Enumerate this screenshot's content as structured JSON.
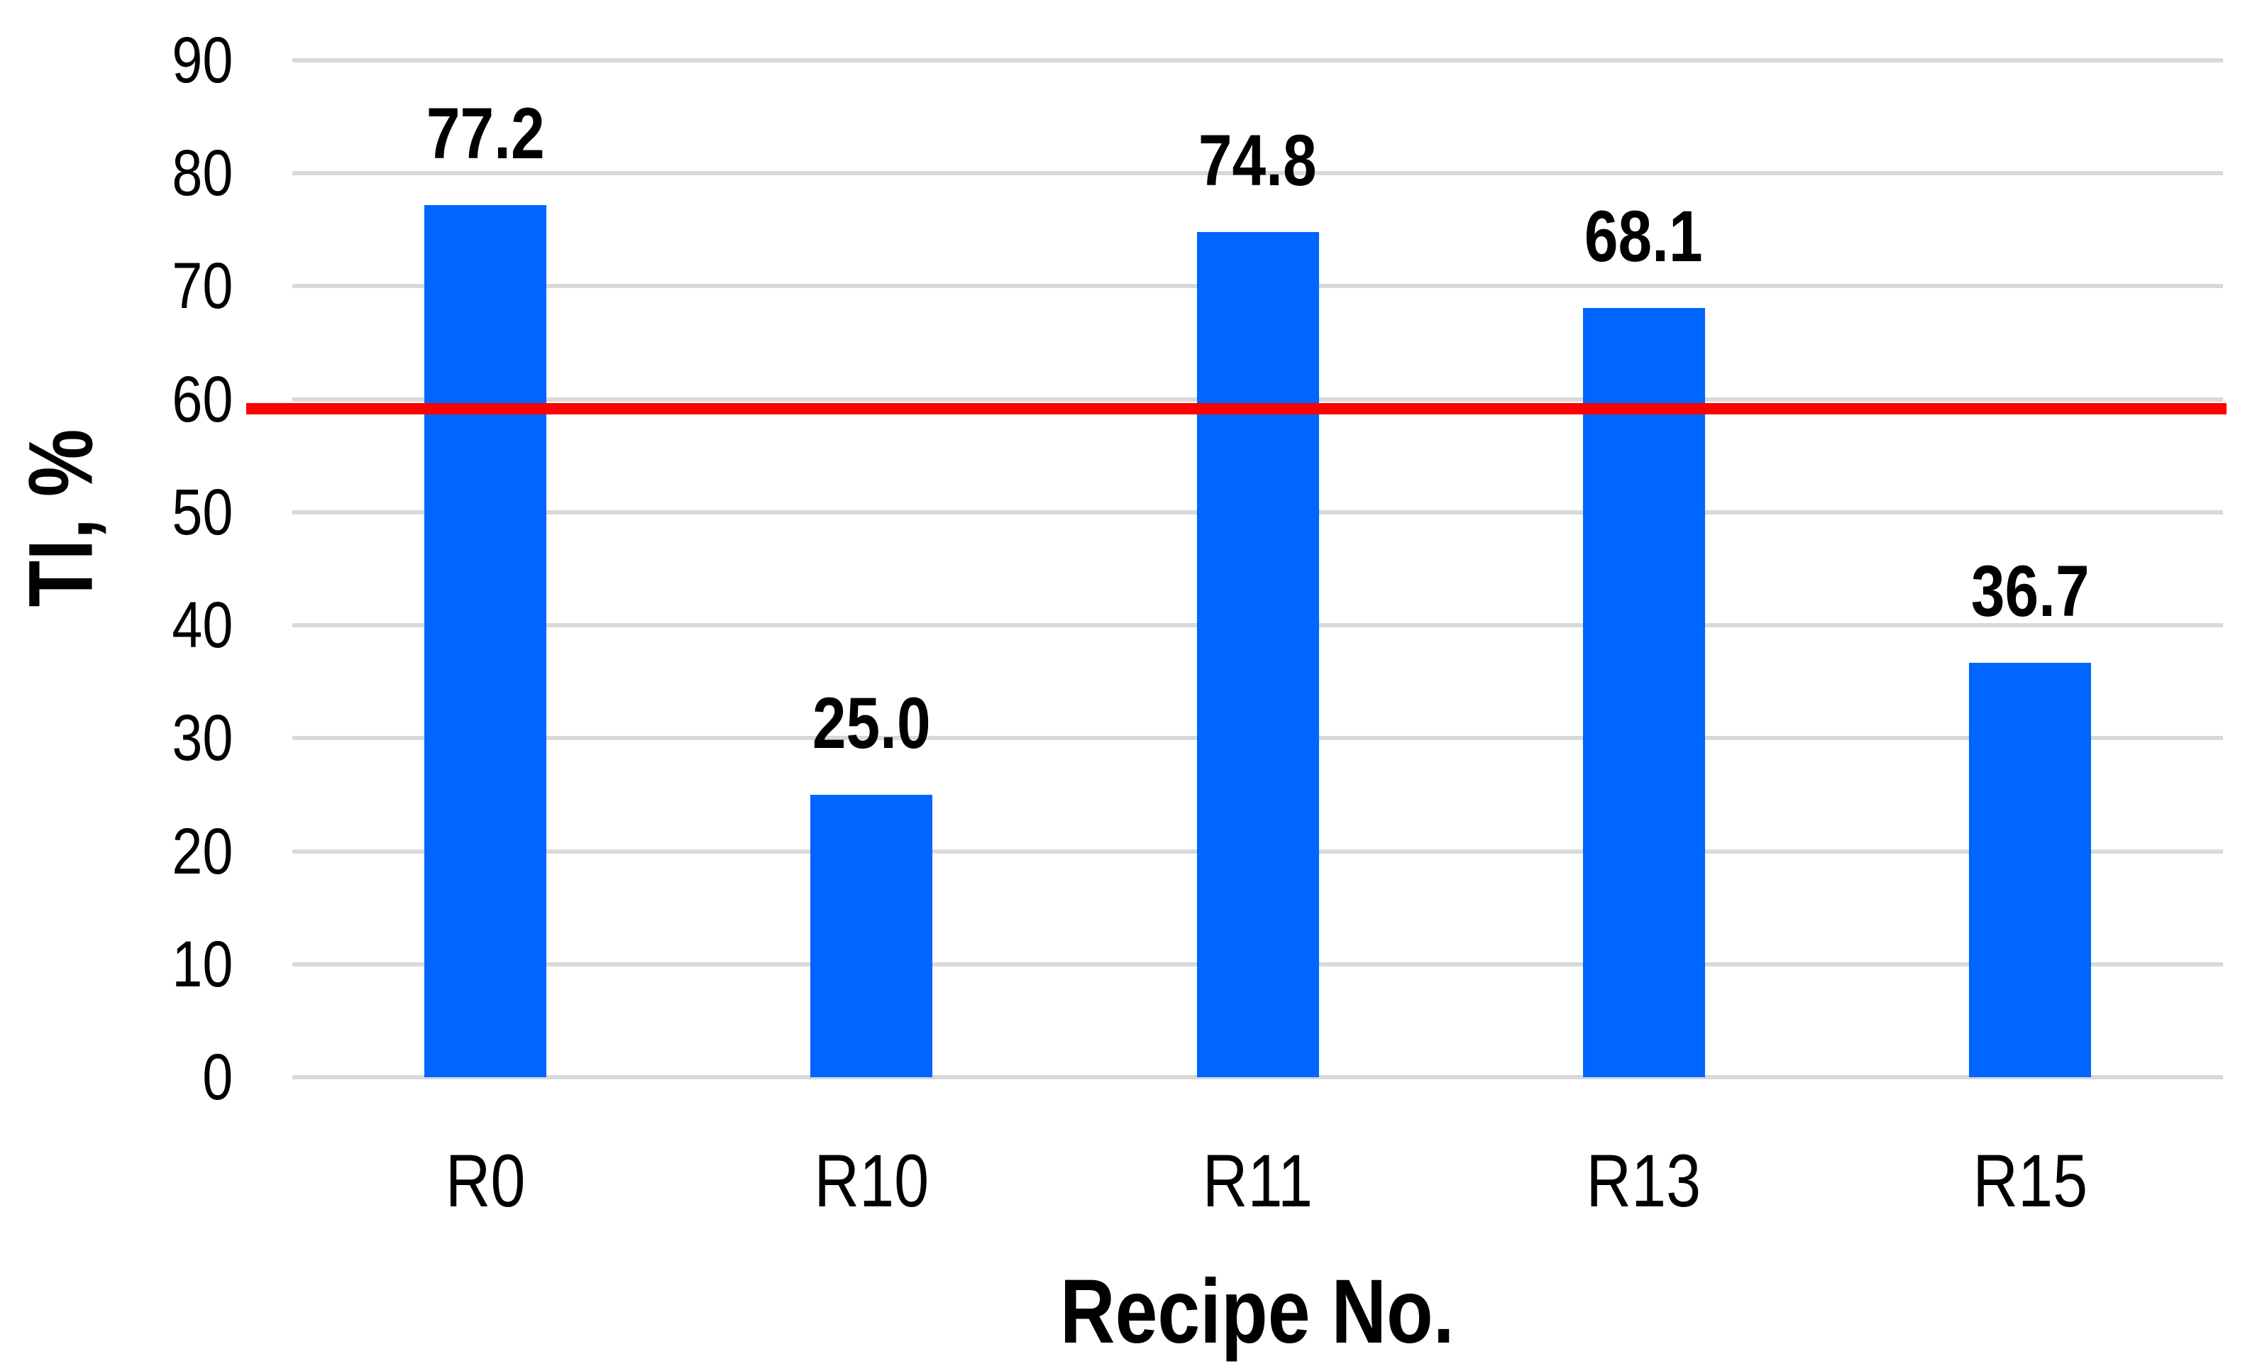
{
  "chart_data": {
    "type": "bar",
    "title": "",
    "categories": [
      "R0",
      "R10",
      "R11",
      "R13",
      "R15"
    ],
    "series": [
      {
        "name": "TI",
        "values": [
          77.2,
          25.0,
          74.8,
          68.1,
          36.7
        ]
      }
    ],
    "data_labels": [
      "77.2",
      "25.0",
      "74.8",
      "68.1",
      "36.7"
    ],
    "xlabel": "Recipe No.",
    "ylabel": "TI, %",
    "ylim": [
      0,
      90
    ],
    "yticks": [
      0,
      10,
      20,
      30,
      40,
      50,
      60,
      70,
      80,
      90
    ],
    "grid": true,
    "legend_position": "none",
    "bar_color": "#0066FF",
    "gridline_color": "#D9D9D9",
    "text_color": "#000000",
    "threshold_line": {
      "value": 60,
      "color": "#FF0000"
    }
  }
}
